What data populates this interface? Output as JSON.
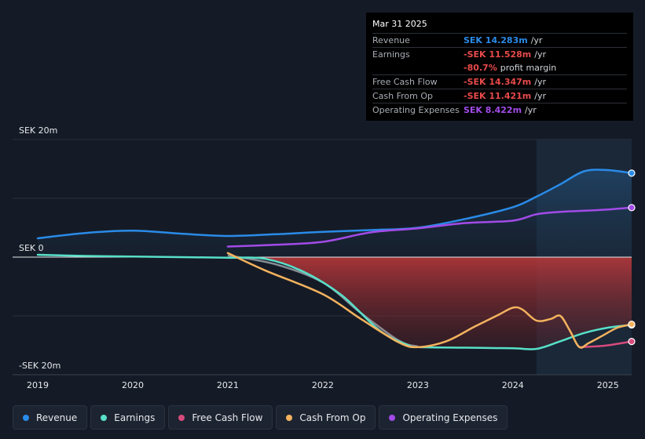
{
  "chart_data": {
    "type": "line",
    "currency": "SEK",
    "unit": "m",
    "y_tick_labels": [
      "SEK 20m",
      "SEK 0",
      "-SEK 20m"
    ],
    "ylim": [
      -20,
      20
    ],
    "xlim": [
      2019.0,
      2025.25
    ],
    "x_tick_labels": [
      "2019",
      "2020",
      "2021",
      "2022",
      "2023",
      "2024",
      "2025"
    ],
    "x_tick_values": [
      2019,
      2020,
      2021,
      2022,
      2023,
      2024,
      2025
    ],
    "shaded_from": 2024.25,
    "series": [
      {
        "name": "Revenue",
        "color": "#2a8be8",
        "points": [
          [
            2019.0,
            3.2
          ],
          [
            2019.5,
            4.1
          ],
          [
            2020.0,
            4.5
          ],
          [
            2020.5,
            4.0
          ],
          [
            2021.0,
            3.6
          ],
          [
            2021.5,
            3.9
          ],
          [
            2022.0,
            4.3
          ],
          [
            2022.5,
            4.6
          ],
          [
            2023.0,
            5.0
          ],
          [
            2023.5,
            6.5
          ],
          [
            2024.0,
            8.5
          ],
          [
            2024.25,
            10.3
          ],
          [
            2024.5,
            12.4
          ],
          [
            2024.75,
            14.6
          ],
          [
            2025.0,
            14.8
          ],
          [
            2025.25,
            14.283
          ]
        ]
      },
      {
        "name": "Operating Expenses",
        "color": "#a24be8",
        "points": [
          [
            2021.0,
            1.8
          ],
          [
            2021.5,
            2.1
          ],
          [
            2022.0,
            2.6
          ],
          [
            2022.5,
            4.2
          ],
          [
            2023.0,
            4.9
          ],
          [
            2023.5,
            5.8
          ],
          [
            2024.0,
            6.2
          ],
          [
            2024.25,
            7.3
          ],
          [
            2024.5,
            7.7
          ],
          [
            2024.75,
            7.9
          ],
          [
            2025.0,
            8.1
          ],
          [
            2025.25,
            8.422
          ]
        ]
      },
      {
        "name": "Earnings",
        "color": "#58e0c9",
        "points": [
          [
            2019.0,
            0.4
          ],
          [
            2019.5,
            0.2
          ],
          [
            2020.0,
            0.1
          ],
          [
            2020.5,
            0.0
          ],
          [
            2021.0,
            -0.1
          ],
          [
            2021.4,
            -0.3
          ],
          [
            2021.8,
            -2.5
          ],
          [
            2022.2,
            -6.5
          ],
          [
            2022.6,
            -12.5
          ],
          [
            2022.9,
            -15.0
          ],
          [
            2023.0,
            -15.3
          ],
          [
            2023.5,
            -15.4
          ],
          [
            2024.0,
            -15.5
          ],
          [
            2024.25,
            -15.6
          ],
          [
            2024.5,
            -14.3
          ],
          [
            2024.75,
            -12.9
          ],
          [
            2025.0,
            -12.0
          ],
          [
            2025.25,
            -11.528
          ]
        ]
      },
      {
        "name": "Free Cash Flow",
        "color": "#d64b7c",
        "points": [
          [
            2024.7,
            -15.3
          ],
          [
            2024.85,
            -15.2
          ],
          [
            2025.0,
            -15.0
          ],
          [
            2025.25,
            -14.347
          ]
        ]
      },
      {
        "name": "Cash From Op",
        "color": "#f3b25e",
        "points": [
          [
            2021.0,
            0.7
          ],
          [
            2021.4,
            -2.3
          ],
          [
            2022.0,
            -6.3
          ],
          [
            2022.4,
            -10.5
          ],
          [
            2022.8,
            -14.5
          ],
          [
            2023.0,
            -15.3
          ],
          [
            2023.3,
            -14.3
          ],
          [
            2023.6,
            -11.8
          ],
          [
            2023.85,
            -9.8
          ],
          [
            2024.0,
            -8.6
          ],
          [
            2024.1,
            -8.9
          ],
          [
            2024.25,
            -10.8
          ],
          [
            2024.4,
            -10.5
          ],
          [
            2024.5,
            -10.0
          ],
          [
            2024.6,
            -12.5
          ],
          [
            2024.7,
            -15.3
          ],
          [
            2024.8,
            -14.6
          ],
          [
            2024.95,
            -13.3
          ],
          [
            2025.1,
            -12.0
          ],
          [
            2025.25,
            -11.421
          ]
        ]
      }
    ]
  },
  "tooltip": {
    "date": "Mar 31 2025",
    "rows": [
      {
        "label": "Revenue",
        "value": "SEK 14.283m",
        "unit": "/yr",
        "color": "#2a8be8"
      },
      {
        "label": "Earnings",
        "value": "-SEK 11.528m",
        "unit": "/yr",
        "color": "#e84a4a"
      },
      {
        "label": "",
        "value": "-80.7%",
        "unit": "profit margin",
        "color": "#e84a4a"
      },
      {
        "label": "Free Cash Flow",
        "value": "-SEK 14.347m",
        "unit": "/yr",
        "color": "#e84a4a"
      },
      {
        "label": "Cash From Op",
        "value": "-SEK 11.421m",
        "unit": "/yr",
        "color": "#e84a4a"
      },
      {
        "label": "Operating Expenses",
        "value": "SEK 8.422m",
        "unit": "/yr",
        "color": "#a24be8"
      }
    ]
  },
  "legend": [
    {
      "label": "Revenue",
      "color": "#2a8be8"
    },
    {
      "label": "Earnings",
      "color": "#58e0c9"
    },
    {
      "label": "Free Cash Flow",
      "color": "#d64b7c"
    },
    {
      "label": "Cash From Op",
      "color": "#f3b25e"
    },
    {
      "label": "Operating Expenses",
      "color": "#a24be8"
    }
  ]
}
